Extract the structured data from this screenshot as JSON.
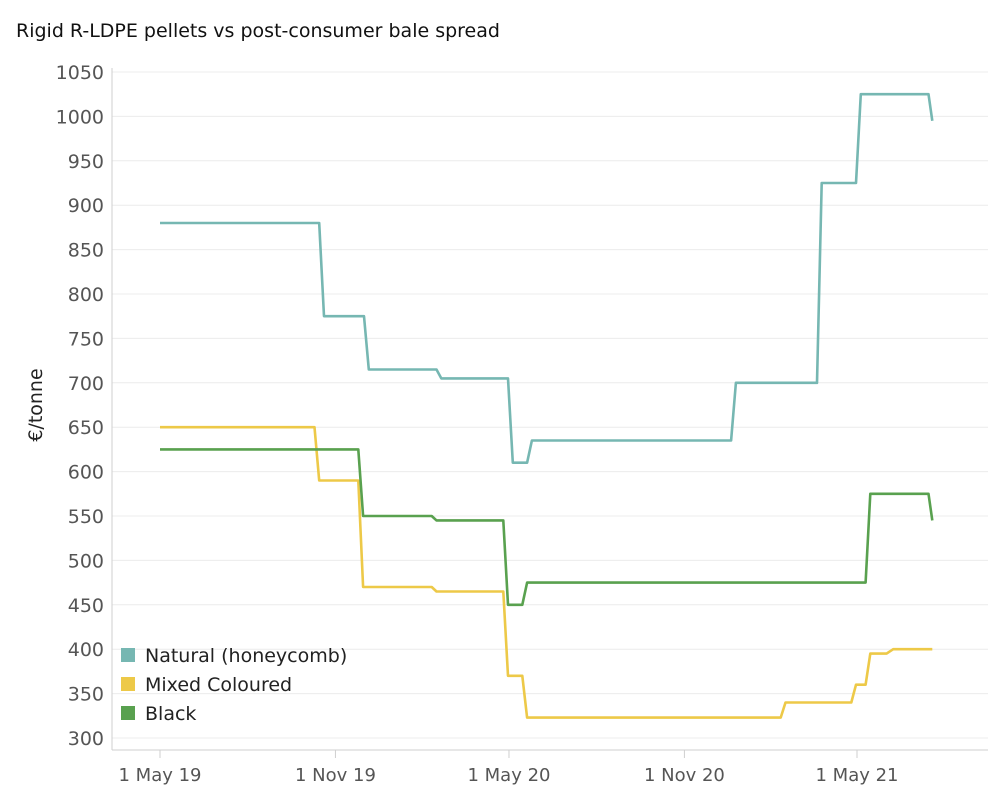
{
  "chart_data": {
    "type": "line",
    "title": "Rigid R-LDPE pellets vs post-consumer bale spread",
    "ylabel": "€/tonne",
    "xlabel": "",
    "ylim": [
      300,
      1050
    ],
    "yticks": [
      300,
      350,
      400,
      450,
      500,
      550,
      600,
      650,
      700,
      750,
      800,
      850,
      900,
      950,
      1000,
      1050
    ],
    "xlim": [
      "2019-04-01",
      "2021-08-31"
    ],
    "xticks": [
      {
        "date": "2019-05-01",
        "label": "1 May 19"
      },
      {
        "date": "2019-11-01",
        "label": "1 Nov 19"
      },
      {
        "date": "2020-05-01",
        "label": "1 May 20"
      },
      {
        "date": "2020-11-01",
        "label": "1 Nov 20"
      },
      {
        "date": "2021-05-01",
        "label": "1 May 21"
      }
    ],
    "grid": true,
    "legend_position": "bottom-left",
    "series": [
      {
        "name": "Natural (honeycomb)",
        "color": "#76b7b2",
        "points": [
          [
            "2019-05-01",
            880
          ],
          [
            "2019-10-15",
            880
          ],
          [
            "2019-10-20",
            775
          ],
          [
            "2019-12-01",
            775
          ],
          [
            "2019-12-06",
            715
          ],
          [
            "2020-02-15",
            715
          ],
          [
            "2020-02-20",
            705
          ],
          [
            "2020-04-30",
            705
          ],
          [
            "2020-05-05",
            610
          ],
          [
            "2020-05-20",
            610
          ],
          [
            "2020-05-25",
            635
          ],
          [
            "2020-12-20",
            635
          ],
          [
            "2020-12-25",
            700
          ],
          [
            "2021-03-20",
            700
          ],
          [
            "2021-03-25",
            925
          ],
          [
            "2021-04-30",
            925
          ],
          [
            "2021-05-05",
            1025
          ],
          [
            "2021-07-15",
            1025
          ],
          [
            "2021-07-19",
            995
          ]
        ]
      },
      {
        "name": "Mixed Coloured",
        "color": "#edc948",
        "points": [
          [
            "2019-05-01",
            650
          ],
          [
            "2019-10-10",
            650
          ],
          [
            "2019-10-15",
            590
          ],
          [
            "2019-11-25",
            590
          ],
          [
            "2019-11-30",
            470
          ],
          [
            "2020-02-10",
            470
          ],
          [
            "2020-02-15",
            465
          ],
          [
            "2020-04-25",
            465
          ],
          [
            "2020-04-30",
            370
          ],
          [
            "2020-05-15",
            370
          ],
          [
            "2020-05-20",
            323
          ],
          [
            "2021-02-10",
            323
          ],
          [
            "2021-02-15",
            340
          ],
          [
            "2021-04-25",
            340
          ],
          [
            "2021-04-30",
            360
          ],
          [
            "2021-05-10",
            360
          ],
          [
            "2021-05-15",
            395
          ],
          [
            "2021-06-01",
            395
          ],
          [
            "2021-06-08",
            400
          ],
          [
            "2021-07-19",
            400
          ]
        ]
      },
      {
        "name": "Black",
        "color": "#59a14f",
        "points": [
          [
            "2019-05-01",
            625
          ],
          [
            "2019-11-25",
            625
          ],
          [
            "2019-11-30",
            550
          ],
          [
            "2020-02-10",
            550
          ],
          [
            "2020-02-15",
            545
          ],
          [
            "2020-04-25",
            545
          ],
          [
            "2020-04-30",
            450
          ],
          [
            "2020-05-15",
            450
          ],
          [
            "2020-05-20",
            475
          ],
          [
            "2021-05-10",
            475
          ],
          [
            "2021-05-15",
            575
          ],
          [
            "2021-07-15",
            575
          ],
          [
            "2021-07-19",
            545
          ]
        ]
      }
    ]
  }
}
